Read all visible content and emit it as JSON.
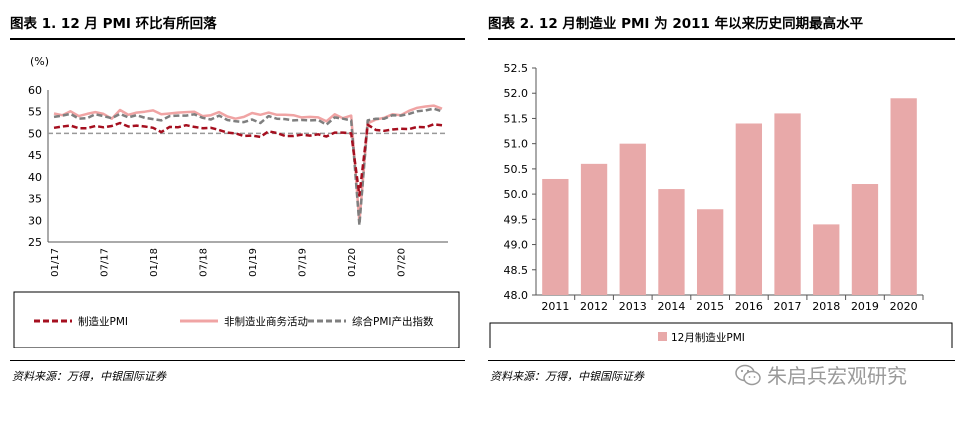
{
  "left": {
    "title": "图表 1. 12 月 PMI 环比有所回落",
    "source": "资料来源：万得，中银国际证券",
    "chart_data": {
      "type": "line",
      "ylabel": "(%)",
      "ylim": [
        25,
        60
      ],
      "yticks": [
        25,
        30,
        35,
        40,
        45,
        50,
        55,
        60
      ],
      "xticks": [
        {
          "label": "01/17",
          "t": 0
        },
        {
          "label": "07/17",
          "t": 6
        },
        {
          "label": "01/18",
          "t": 12
        },
        {
          "label": "07/18",
          "t": 18
        },
        {
          "label": "01/19",
          "t": 24
        },
        {
          "label": "07/19",
          "t": 30
        },
        {
          "label": "01/20",
          "t": 36
        },
        {
          "label": "07/20",
          "t": 42
        }
      ],
      "series": [
        {
          "name": "制造业PMI",
          "color": "#a50f1f",
          "style": "dashed",
          "values": [
            51.3,
            51.6,
            51.8,
            51.2,
            51.2,
            51.7,
            51.4,
            51.7,
            52.4,
            51.6,
            51.8,
            51.6,
            51.3,
            50.3,
            51.5,
            51.4,
            51.9,
            51.5,
            51.2,
            51.3,
            50.8,
            50.2,
            50.0,
            49.4,
            49.5,
            49.2,
            50.5,
            50.1,
            49.4,
            49.4,
            49.7,
            49.5,
            49.8,
            49.3,
            50.2,
            50.2,
            50.0,
            35.7,
            52.0,
            50.8,
            50.6,
            50.9,
            51.1,
            51.0,
            51.5,
            51.4,
            52.1,
            51.9
          ]
        },
        {
          "name": "非制造业商务活动",
          "color": "#f0a4a4",
          "style": "solid",
          "values": [
            54.6,
            54.2,
            55.1,
            54.0,
            54.5,
            54.9,
            54.5,
            53.4,
            55.4,
            54.3,
            54.8,
            55.0,
            55.3,
            54.4,
            54.6,
            54.8,
            54.9,
            55.0,
            54.0,
            54.2,
            54.9,
            53.9,
            53.4,
            53.8,
            54.7,
            54.3,
            54.8,
            54.3,
            54.3,
            54.2,
            53.7,
            53.8,
            53.7,
            52.8,
            54.4,
            53.5,
            54.1,
            29.6,
            52.3,
            53.2,
            53.6,
            54.4,
            54.2,
            55.2,
            55.9,
            56.2,
            56.4,
            55.7
          ]
        },
        {
          "name": "综合PMI产出指数",
          "color": "#7f7f7f",
          "style": "dashed",
          "values": [
            53.8,
            54.1,
            54.5,
            53.4,
            53.5,
            54.4,
            54.0,
            53.5,
            54.5,
            53.7,
            54.2,
            53.6,
            53.3,
            53.0,
            54.0,
            54.1,
            54.1,
            54.4,
            53.6,
            53.2,
            54.1,
            53.1,
            52.8,
            52.6,
            53.2,
            52.4,
            54.0,
            53.4,
            53.3,
            53.0,
            53.1,
            53.0,
            53.1,
            52.0,
            53.7,
            53.4,
            53.0,
            28.9,
            53.0,
            53.4,
            53.4,
            54.2,
            54.1,
            54.5,
            55.1,
            55.3,
            55.7,
            55.1
          ]
        }
      ],
      "reference_line": {
        "value": 50,
        "color": "#999999",
        "style": "dashed"
      },
      "legend": "bottom"
    }
  },
  "right": {
    "title": "图表 2. 12 月制造业 PMI 为 2011 年以来历史同期最高水平",
    "source": "资料来源：万得，中银国际证券",
    "chart_data": {
      "type": "bar",
      "categories": [
        "2011",
        "2012",
        "2013",
        "2014",
        "2015",
        "2016",
        "2017",
        "2018",
        "2019",
        "2020"
      ],
      "series": [
        {
          "name": "12月制造业PMI",
          "color": "#e8a9a9",
          "values": [
            50.3,
            50.6,
            51.0,
            50.1,
            49.7,
            51.4,
            51.6,
            49.4,
            50.2,
            51.9
          ]
        }
      ],
      "ylim": [
        48.0,
        52.5
      ],
      "yticks": [
        "48.0",
        "48.5",
        "49.0",
        "49.5",
        "50.0",
        "50.5",
        "51.0",
        "51.5",
        "52.0",
        "52.5"
      ],
      "legend": "bottom"
    }
  },
  "watermark": {
    "icon": "wechat-icon",
    "text": "朱启兵宏观研究"
  }
}
